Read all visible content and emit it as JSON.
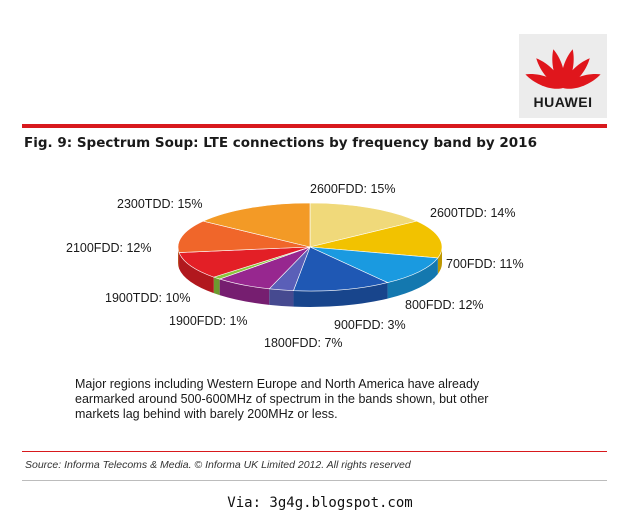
{
  "logo": {
    "text": "HUAWEI",
    "color": "#e0161c"
  },
  "figure": {
    "title": "Fig. 9: Spectrum Soup: LTE connections by frequency band by 2016"
  },
  "chart_data": {
    "type": "pie",
    "title": "Fig. 9: Spectrum Soup: LTE connections by frequency band by 2016",
    "unit": "%",
    "slices": [
      {
        "name": "2600FDD",
        "value": 15,
        "label": "2600FDD: 15%",
        "color": "#f0d97a"
      },
      {
        "name": "2600TDD",
        "value": 14,
        "label": "2600TDD: 14%",
        "color": "#f2c200"
      },
      {
        "name": "700FDD",
        "value": 11,
        "label": "700FDD: 11%",
        "color": "#1a9ae0"
      },
      {
        "name": "800FDD",
        "value": 12,
        "label": "800FDD: 12%",
        "color": "#1f58b4"
      },
      {
        "name": "900FDD",
        "value": 3,
        "label": "900FDD: 3%",
        "color": "#5a5fb8"
      },
      {
        "name": "1800FDD",
        "value": 7,
        "label": "1800FDD: 7%",
        "color": "#97278f"
      },
      {
        "name": "1900FDD",
        "value": 1,
        "label": "1900FDD: 1%",
        "color": "#8cc63e"
      },
      {
        "name": "1900TDD",
        "value": 10,
        "label": "1900TDD: 10%",
        "color": "#e31f26"
      },
      {
        "name": "2100FDD",
        "value": 12,
        "label": "2100FDD: 12%",
        "color": "#f0662a"
      },
      {
        "name": "2300TDD",
        "value": 15,
        "label": "2300TDD: 15%",
        "color": "#f39a26"
      }
    ]
  },
  "note": {
    "lines": [
      "Major  regions including Western Europe and North America have already",
      "earmarked  around 500-600MHz of spectrum in the bands shown, but other",
      "markets lag behind with barely 200MHz or less."
    ]
  },
  "source": "Source: Informa Telecoms & Media. © Informa UK Limited 2012. All rights reserved",
  "via": "Via: 3g4g.blogspot.com",
  "accent_color": "#d8191d"
}
